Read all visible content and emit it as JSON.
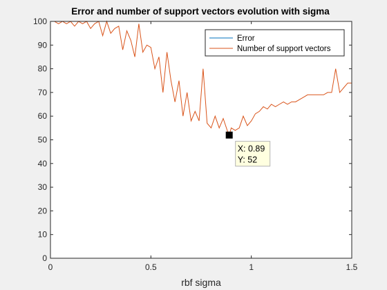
{
  "chart_data": {
    "type": "line",
    "title": "Error and number of support vectors evolution with sigma",
    "xlabel": "rbf sigma",
    "ylabel": "",
    "xlim": [
      0,
      1.5
    ],
    "ylim": [
      0,
      100
    ],
    "xticks": [
      0,
      0.5,
      1,
      1.5
    ],
    "xtick_labels": [
      "0",
      "0.5",
      "1",
      "1.5"
    ],
    "yticks": [
      0,
      10,
      20,
      30,
      40,
      50,
      60,
      70,
      80,
      90,
      100
    ],
    "ytick_labels": [
      "0",
      "10",
      "20",
      "30",
      "40",
      "50",
      "60",
      "70",
      "80",
      "90",
      "100"
    ],
    "grid": false,
    "legend_position": "top-right",
    "series": [
      {
        "name": "Error",
        "color": "#0072bd",
        "x": [
          0.0,
          0.02,
          0.04,
          0.06,
          0.08,
          0.1,
          0.12,
          0.14,
          0.16,
          0.18,
          0.2,
          0.22,
          0.24,
          0.26,
          0.28,
          0.3,
          0.32,
          0.34,
          0.36,
          0.38,
          0.4,
          0.42,
          0.44,
          0.46,
          0.48,
          0.5,
          0.52,
          0.54,
          0.56,
          0.58,
          0.6,
          0.62,
          0.64,
          0.66,
          0.68,
          0.7,
          0.72,
          0.74,
          0.76,
          0.78,
          0.8,
          0.82,
          0.84,
          0.86,
          0.88,
          0.89,
          0.9,
          0.92,
          0.94,
          0.96,
          0.98,
          1.0,
          1.02,
          1.04,
          1.06,
          1.08,
          1.1,
          1.12,
          1.14,
          1.16,
          1.18,
          1.2,
          1.22,
          1.24,
          1.26,
          1.28,
          1.3,
          1.32,
          1.34,
          1.36,
          1.38,
          1.4,
          1.42,
          1.44,
          1.46,
          1.48,
          1.5
        ],
        "y": [
          0,
          0,
          0,
          0,
          0,
          0,
          0,
          0,
          0,
          0,
          0,
          0,
          0,
          0,
          0,
          0,
          0,
          0,
          0,
          0,
          0,
          0,
          0,
          0,
          0,
          0,
          0,
          0,
          0,
          0,
          0,
          0,
          0,
          0,
          0,
          0,
          0,
          0,
          0,
          0,
          0,
          0,
          0,
          0,
          0,
          0,
          0,
          0,
          0,
          0,
          0,
          0,
          0,
          0,
          0,
          0,
          0,
          0,
          0,
          0,
          0,
          0,
          0,
          0,
          0,
          0,
          0,
          0,
          0,
          0,
          0,
          0,
          0,
          0,
          0,
          0,
          0
        ]
      },
      {
        "name": "Number of support vectors",
        "color": "#d95319",
        "x": [
          0.0,
          0.02,
          0.04,
          0.06,
          0.08,
          0.1,
          0.12,
          0.14,
          0.16,
          0.18,
          0.2,
          0.22,
          0.24,
          0.26,
          0.28,
          0.3,
          0.32,
          0.34,
          0.36,
          0.38,
          0.4,
          0.42,
          0.44,
          0.46,
          0.48,
          0.5,
          0.52,
          0.54,
          0.56,
          0.58,
          0.6,
          0.62,
          0.64,
          0.66,
          0.68,
          0.7,
          0.72,
          0.74,
          0.76,
          0.78,
          0.8,
          0.82,
          0.84,
          0.86,
          0.88,
          0.89,
          0.9,
          0.92,
          0.94,
          0.96,
          0.98,
          1.0,
          1.02,
          1.04,
          1.06,
          1.08,
          1.1,
          1.12,
          1.14,
          1.16,
          1.18,
          1.2,
          1.22,
          1.24,
          1.26,
          1.28,
          1.3,
          1.32,
          1.34,
          1.36,
          1.38,
          1.4,
          1.42,
          1.44,
          1.46,
          1.48,
          1.5
        ],
        "y": [
          100,
          100,
          99,
          100,
          99,
          100,
          98,
          100,
          99,
          100,
          97,
          99,
          100,
          94,
          100,
          95,
          97,
          98,
          88,
          96,
          92,
          85,
          99,
          87,
          90,
          89,
          80,
          85,
          70,
          87,
          75,
          66,
          75,
          60,
          70,
          58,
          62,
          58,
          80,
          57,
          55,
          60,
          55,
          59,
          54,
          52,
          55,
          54,
          55,
          60,
          56,
          58,
          61,
          62,
          64,
          63,
          65,
          64,
          65,
          66,
          65,
          66,
          66,
          67,
          68,
          69,
          69,
          69,
          69,
          69,
          70,
          70,
          80,
          70,
          72,
          74,
          74
        ]
      }
    ],
    "annotations": [
      {
        "type": "datatip",
        "x": 0.89,
        "y": 52,
        "lines": [
          "X: 0.89",
          "Y: 52"
        ]
      }
    ]
  }
}
